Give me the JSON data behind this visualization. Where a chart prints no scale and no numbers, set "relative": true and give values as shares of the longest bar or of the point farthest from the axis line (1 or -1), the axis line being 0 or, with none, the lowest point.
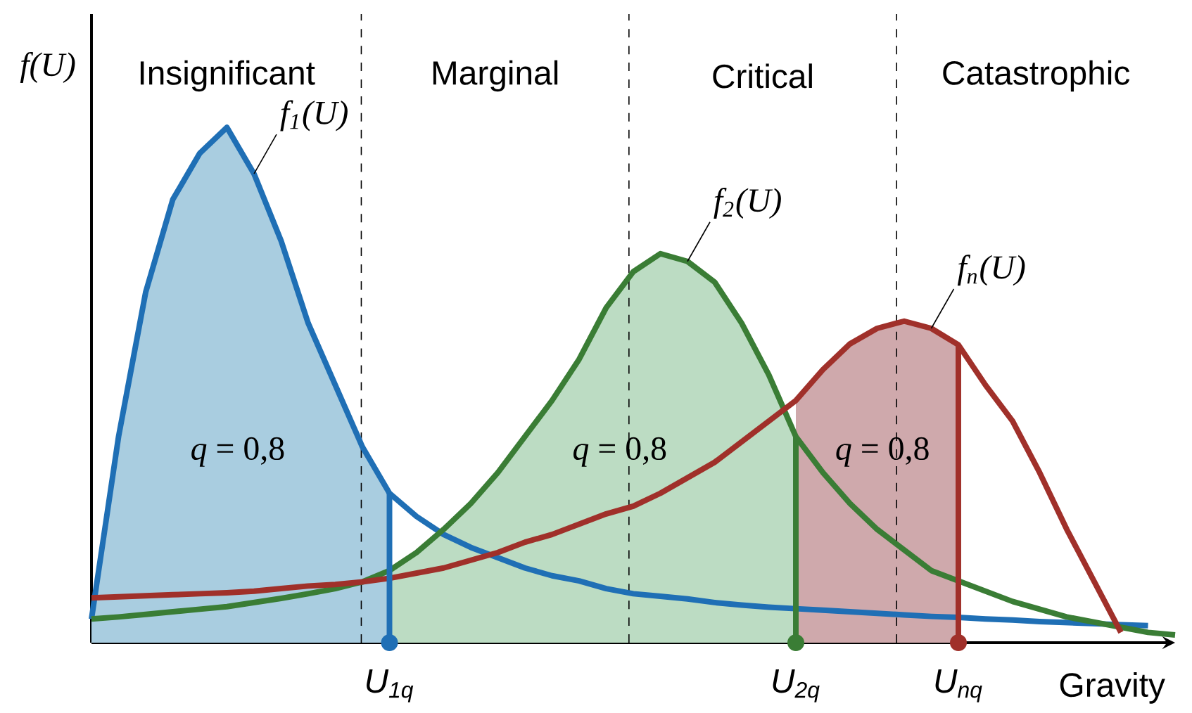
{
  "chart_data": {
    "type": "line",
    "relative": true,
    "xlabel": "Gravity",
    "ylabel": "f(U)",
    "grid": false,
    "line_style": "solid",
    "marker": "none",
    "categories": [
      null,
      null,
      null,
      null,
      null,
      null,
      null,
      null,
      null,
      null,
      null,
      null,
      null,
      null,
      null,
      null,
      null,
      null,
      null,
      null,
      null,
      null,
      null,
      null,
      null,
      null,
      null,
      null,
      null,
      null,
      null,
      null,
      null,
      null,
      null,
      null,
      null,
      null,
      null,
      null,
      null
    ],
    "series": [
      {
        "type": "area",
        "color": "#a9cde0",
        "values": [
          0.046,
          0.4,
          0.68,
          0.86,
          0.95,
          1.0,
          0.91,
          0.78,
          0.62,
          0.5,
          0.38,
          0.29,
          null,
          null,
          null,
          null,
          null,
          null,
          null,
          null,
          null,
          null,
          null,
          null,
          null,
          null,
          null,
          null,
          null,
          null,
          null,
          null,
          null,
          null,
          null,
          null,
          null,
          null,
          null,
          null,
          null
        ]
      },
      {
        "type": "area",
        "color": "#bcdcc3",
        "values": [
          null,
          null,
          null,
          null,
          null,
          null,
          null,
          null,
          null,
          null,
          null,
          0.14,
          0.175,
          0.22,
          0.27,
          0.33,
          0.4,
          0.47,
          0.55,
          0.65,
          0.72,
          0.755,
          0.74,
          0.7,
          0.62,
          0.52,
          0.4,
          null,
          null,
          null,
          null,
          null,
          null,
          null,
          null,
          null,
          null,
          null,
          null,
          null,
          null
        ]
      },
      {
        "type": "area",
        "color": "#cfa9ac",
        "values": [
          null,
          null,
          null,
          null,
          null,
          null,
          null,
          null,
          null,
          null,
          null,
          null,
          null,
          null,
          null,
          null,
          null,
          null,
          null,
          null,
          null,
          null,
          null,
          null,
          null,
          null,
          0.47,
          0.53,
          0.58,
          0.61,
          0.624,
          0.61,
          0.578,
          null,
          null,
          null,
          null,
          null,
          null,
          null,
          null
        ]
      },
      {
        "name": "f$_{1}$(U)",
        "color": "#1f6fb5",
        "values": [
          0.046,
          0.4,
          0.68,
          0.86,
          0.95,
          1.0,
          0.91,
          0.78,
          0.62,
          0.5,
          0.38,
          0.29,
          0.245,
          0.21,
          0.185,
          0.165,
          0.145,
          0.13,
          0.12,
          0.105,
          0.095,
          0.09,
          0.085,
          0.078,
          0.073,
          0.069,
          0.066,
          0.063,
          0.06,
          0.057,
          0.054,
          0.051,
          0.049,
          0.046,
          0.044,
          0.041,
          0.039,
          0.037,
          0.035,
          0.033,
          null
        ]
      },
      {
        "name": "f$_{2}$(U)",
        "color": "#3a7d35",
        "values": [
          0.046,
          0.05,
          0.055,
          0.06,
          0.065,
          0.07,
          0.078,
          0.086,
          0.095,
          0.105,
          0.118,
          0.14,
          0.175,
          0.22,
          0.27,
          0.33,
          0.4,
          0.47,
          0.55,
          0.65,
          0.72,
          0.755,
          0.74,
          0.7,
          0.62,
          0.52,
          0.4,
          0.33,
          0.27,
          0.22,
          0.18,
          0.14,
          0.12,
          0.1,
          0.08,
          0.065,
          0.05,
          0.04,
          0.03,
          0.02,
          0.015
        ]
      },
      {
        "name": "f$_{n}$(U)",
        "color": "#a0302a",
        "values": [
          0.087,
          0.089,
          0.091,
          0.093,
          0.095,
          0.097,
          0.1,
          0.105,
          0.11,
          0.113,
          0.118,
          0.125,
          0.135,
          0.145,
          0.16,
          0.175,
          0.195,
          0.21,
          0.23,
          0.25,
          0.265,
          0.29,
          0.32,
          0.35,
          0.39,
          0.43,
          0.47,
          0.53,
          0.58,
          0.61,
          0.624,
          0.61,
          0.578,
          0.5,
          0.43,
          0.33,
          0.22,
          0.12,
          0.02,
          null,
          null
        ]
      }
    ],
    "annotations": [
      "Insignificant",
      "Marginal",
      "Critical",
      "Catastrophic",
      "U$_{1q}$",
      "U$_{2q}$",
      "U$_{nq}$",
      "*q* = 0,8",
      "*q* = 0,8",
      "*q* = 0,8"
    ]
  }
}
